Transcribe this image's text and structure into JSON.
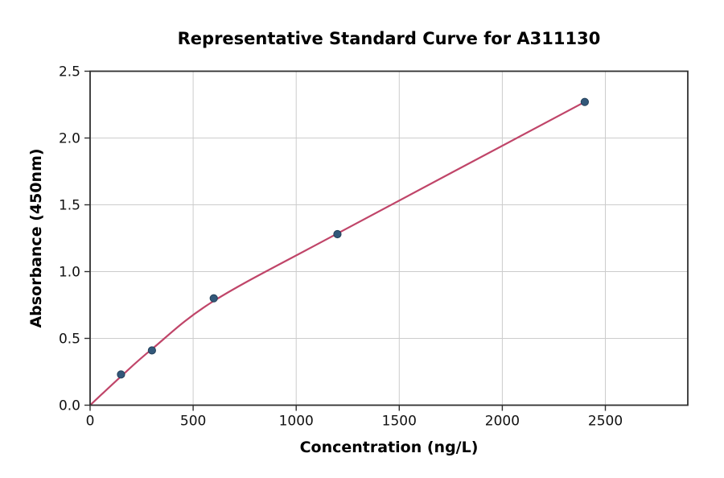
{
  "figure": {
    "background": "#ffffff"
  },
  "chart_data": {
    "type": "scatter",
    "title": "Representative Standard Curve for A311130",
    "xlabel": "Concentration (ng/L)",
    "ylabel": "Absorbance (450nm)",
    "xlim": [
      0,
      2900
    ],
    "ylim": [
      0,
      2.5
    ],
    "xticks": [
      0,
      500,
      1000,
      1500,
      2000,
      2500
    ],
    "yticks": [
      0.0,
      0.5,
      1.0,
      1.5,
      2.0,
      2.5
    ],
    "ytick_decimals": 1,
    "grid": true,
    "legend": null,
    "series": [
      {
        "name": "standard-points",
        "type": "scatter",
        "x": [
          150,
          300,
          600,
          1200,
          2400
        ],
        "y": [
          0.23,
          0.41,
          0.8,
          1.28,
          2.27
        ],
        "marker_color": "#33587a",
        "marker_edge_color": "#24405a",
        "marker_radius": 4.6
      },
      {
        "name": "fit-curve",
        "type": "line",
        "x": [
          0,
          150,
          300,
          600,
          1200,
          2400
        ],
        "y": [
          0,
          0.215,
          0.42,
          0.78,
          1.285,
          2.27
        ],
        "line_color": "#c04569",
        "line_width": 2.2
      }
    ],
    "colors": {
      "grid": "#cccccc",
      "spine": "#2f2f2f",
      "tick": "#2f2f2f",
      "text": "#000000"
    }
  }
}
